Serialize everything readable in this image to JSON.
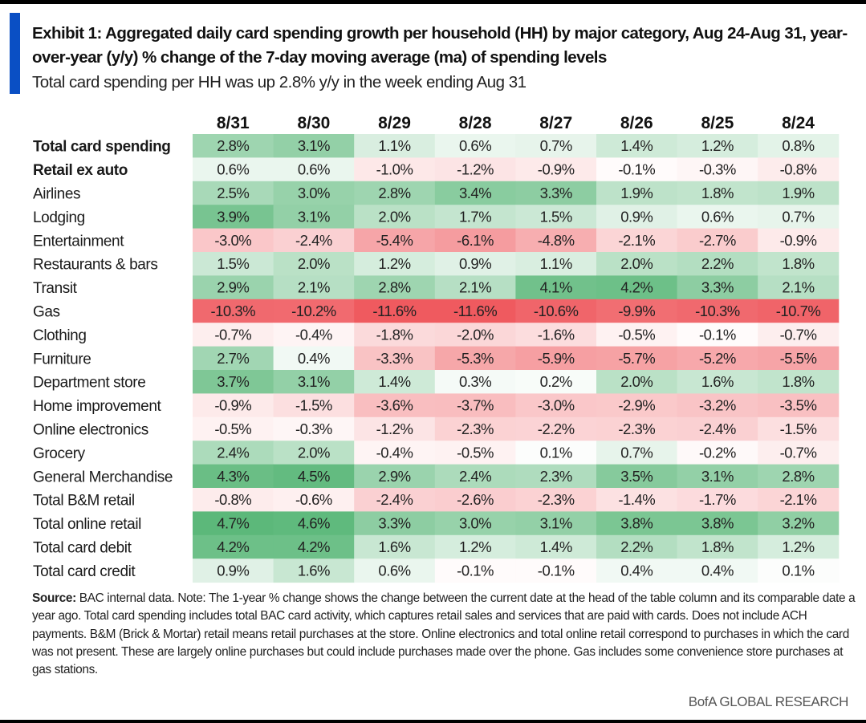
{
  "header": {
    "title": "Exhibit 1: Aggregated daily card spending growth per household (HH) by major category, Aug 24-Aug 31, year-over-year (y/y) % change of the 7-day moving average (ma) of spending levels",
    "subtitle": "Total card spending per HH was up 2.8% y/y in the week ending Aug 31"
  },
  "footer": {
    "source_label": "Source:",
    "source_text": " BAC internal data. Note: The 1-year % change shows the change between the current date at the head of the table column and its comparable date a year ago. Total card spending includes total BAC card activity, which captures retail sales and services that are paid with cards. Does not include ACH payments. B&M (Brick & Mortar) retail means retail purchases at the store. Online electronics and total online retail correspond to purchases in which the card was not present. These are largely online purchases but could include purchases made over the phone. Gas includes some convenience store purchases at gas stations.",
    "brand": "BofA GLOBAL RESEARCH"
  },
  "colors": {
    "accent_bar": "#0a4fc4",
    "positive_max": "#5cb87a",
    "negative_max": "#ef5a5f",
    "neutral": "#ffffff"
  },
  "chart_data": {
    "type": "heatmap",
    "title": "Exhibit 1: Aggregated daily card spending growth per household (HH) by major category, Aug 24-Aug 31, year-over-year (y/y) % change of the 7-day moving average (ma) of spending levels",
    "subtitle": "Total card spending per HH was up 2.8% y/y in the week ending Aug 31",
    "unit": "%",
    "columns": [
      "8/31",
      "8/30",
      "8/29",
      "8/28",
      "8/27",
      "8/26",
      "8/25",
      "8/24"
    ],
    "rows": [
      {
        "label": "Total card spending",
        "bold": true,
        "values": [
          2.8,
          3.1,
          1.1,
          0.6,
          0.7,
          1.4,
          1.2,
          0.8
        ]
      },
      {
        "label": "Retail ex auto",
        "bold": true,
        "values": [
          0.6,
          0.6,
          -1.0,
          -1.2,
          -0.9,
          -0.1,
          -0.3,
          -0.8
        ]
      },
      {
        "label": "Airlines",
        "values": [
          2.5,
          3.0,
          2.8,
          3.4,
          3.3,
          1.9,
          1.8,
          1.9
        ]
      },
      {
        "label": "Lodging",
        "values": [
          3.9,
          3.1,
          2.0,
          1.7,
          1.5,
          0.9,
          0.6,
          0.7
        ]
      },
      {
        "label": "Entertainment",
        "values": [
          -3.0,
          -2.4,
          -5.4,
          -6.1,
          -4.8,
          -2.1,
          -2.7,
          -0.9
        ]
      },
      {
        "label": "Restaurants & bars",
        "values": [
          1.5,
          2.0,
          1.2,
          0.9,
          1.1,
          2.0,
          2.2,
          1.8
        ]
      },
      {
        "label": "Transit",
        "values": [
          2.9,
          2.1,
          2.8,
          2.1,
          4.1,
          4.2,
          3.3,
          2.1
        ]
      },
      {
        "label": "Gas",
        "values": [
          -10.3,
          -10.2,
          -11.6,
          -11.6,
          -10.6,
          -9.9,
          -10.3,
          -10.7
        ]
      },
      {
        "label": "Clothing",
        "values": [
          -0.7,
          -0.4,
          -1.8,
          -2.0,
          -1.6,
          -0.5,
          -0.1,
          -0.7
        ]
      },
      {
        "label": "Furniture",
        "values": [
          2.7,
          0.4,
          -3.3,
          -5.3,
          -5.9,
          -5.7,
          -5.2,
          -5.5
        ]
      },
      {
        "label": "Department store",
        "values": [
          3.7,
          3.1,
          1.4,
          0.3,
          0.2,
          2.0,
          1.6,
          1.8
        ]
      },
      {
        "label": "Home improvement",
        "values": [
          -0.9,
          -1.5,
          -3.6,
          -3.7,
          -3.0,
          -2.9,
          -3.2,
          -3.5
        ]
      },
      {
        "label": "Online electronics",
        "values": [
          -0.5,
          -0.3,
          -1.2,
          -2.3,
          -2.2,
          -2.3,
          -2.4,
          -1.5
        ]
      },
      {
        "label": "Grocery",
        "values": [
          2.4,
          2.0,
          -0.4,
          -0.5,
          0.1,
          0.7,
          -0.2,
          -0.7
        ]
      },
      {
        "label": "General Merchandise",
        "values": [
          4.3,
          4.5,
          2.9,
          2.4,
          2.3,
          3.5,
          3.1,
          2.8
        ]
      },
      {
        "label": "Total B&M retail",
        "values": [
          -0.8,
          -0.6,
          -2.4,
          -2.6,
          -2.3,
          -1.4,
          -1.7,
          -2.1
        ]
      },
      {
        "label": "Total online retail",
        "values": [
          4.7,
          4.6,
          3.3,
          3.0,
          3.1,
          3.8,
          3.8,
          3.2
        ]
      },
      {
        "label": "Total card debit",
        "values": [
          4.2,
          4.2,
          1.6,
          1.2,
          1.4,
          2.2,
          1.8,
          1.2
        ]
      },
      {
        "label": "Total card credit",
        "values": [
          0.9,
          1.6,
          0.6,
          -0.1,
          -0.1,
          0.4,
          0.4,
          0.1
        ]
      }
    ],
    "color_scale": {
      "min": -11.6,
      "mid": 0,
      "max": 4.7
    }
  }
}
